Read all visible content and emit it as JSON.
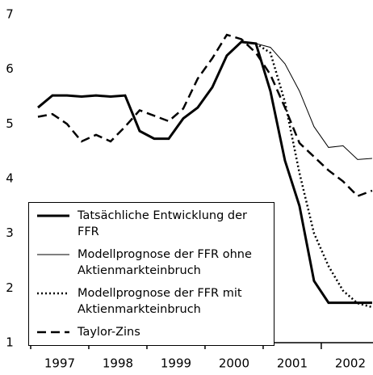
{
  "chart_data": {
    "type": "line",
    "x": [
      1997.125,
      1997.375,
      1997.625,
      1997.875,
      1998.125,
      1998.375,
      1998.625,
      1998.875,
      1999.125,
      1999.375,
      1999.625,
      1999.875,
      2000.125,
      2000.375,
      2000.625,
      2000.875,
      2001.125,
      2001.375,
      2001.625,
      2001.875,
      2002.125,
      2002.375,
      2002.625,
      2002.875
    ],
    "series": [
      {
        "name": "Tatsächliche Entwicklung der FFR",
        "color": "#000000",
        "style": "solid",
        "width": 3,
        "values": [
          5.3,
          5.52,
          5.52,
          5.5,
          5.52,
          5.5,
          5.52,
          4.87,
          4.73,
          4.73,
          5.1,
          5.3,
          5.67,
          6.25,
          6.5,
          6.47,
          5.6,
          4.33,
          3.5,
          2.13,
          1.73,
          1.73,
          1.73,
          1.73
        ]
      },
      {
        "name": "Modellprognose der FFR ohne\nAktienmarkteinbruch",
        "color": "#000000",
        "style": "solid",
        "width": 1,
        "values": [
          null,
          null,
          null,
          null,
          null,
          null,
          null,
          null,
          null,
          null,
          null,
          null,
          null,
          null,
          6.5,
          6.47,
          6.4,
          6.1,
          5.6,
          4.95,
          4.57,
          4.6,
          4.35,
          4.37
        ]
      },
      {
        "name": "Modellprognose der FFR mit\nAktienmarkteinbruch",
        "color": "#000000",
        "style": "dotted",
        "width": 2.5,
        "values": [
          null,
          null,
          null,
          null,
          null,
          null,
          null,
          null,
          null,
          null,
          null,
          null,
          null,
          null,
          null,
          6.47,
          6.3,
          5.4,
          4.1,
          3.0,
          2.4,
          1.95,
          1.72,
          1.65
        ]
      },
      {
        "name": "Taylor-Zins",
        "color": "#000000",
        "style": "dashed",
        "width": 2.5,
        "values": [
          5.13,
          5.18,
          5.0,
          4.68,
          4.8,
          4.68,
          4.95,
          5.25,
          5.15,
          5.05,
          5.28,
          5.83,
          6.2,
          6.63,
          6.55,
          6.3,
          5.9,
          5.3,
          4.65,
          4.4,
          4.15,
          3.95,
          3.68,
          3.78
        ]
      }
    ],
    "xlim": [
      1996.96,
      2002.89
    ],
    "xticks": [
      1997,
      1998,
      1999,
      2000,
      2001,
      2002
    ],
    "xtick_labels": [
      {
        "value": 1997.5,
        "label": "1997"
      },
      {
        "value": 1998.5,
        "label": "1998"
      },
      {
        "value": 1999.5,
        "label": "1999"
      },
      {
        "value": 2000.5,
        "label": "2000"
      },
      {
        "value": 2001.5,
        "label": "2001"
      },
      {
        "value": 2002.5,
        "label": "2002"
      }
    ],
    "ylim": [
      1,
      7
    ],
    "yticks": [
      1,
      2,
      3,
      4,
      5,
      6,
      7
    ],
    "legend": "lower-left"
  }
}
